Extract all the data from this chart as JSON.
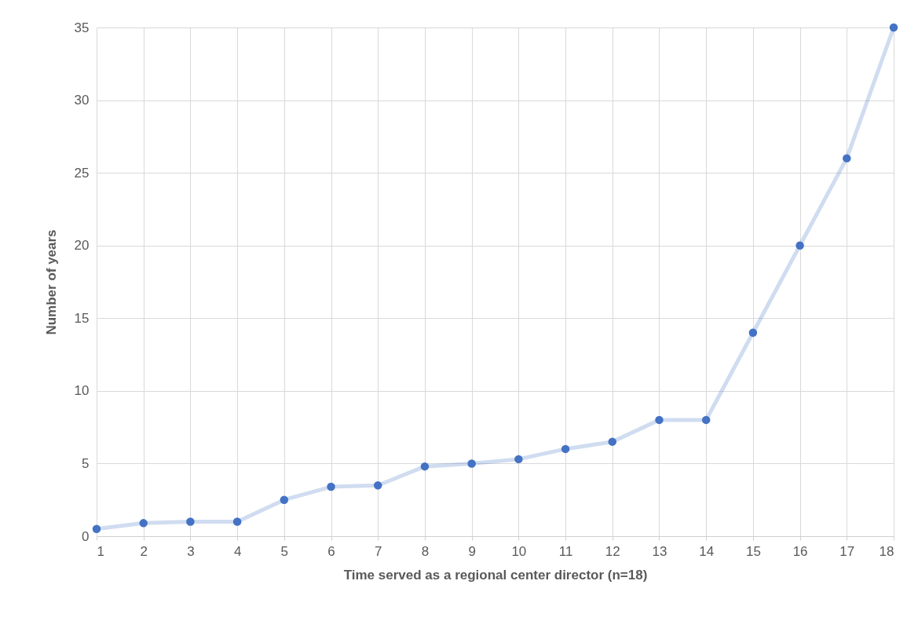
{
  "chart_data": {
    "type": "line",
    "xlabel": "Time served as a regional center director (n=18)",
    "ylabel": "Number of years",
    "x": [
      1,
      2,
      3,
      4,
      5,
      6,
      7,
      8,
      9,
      10,
      11,
      12,
      13,
      14,
      15,
      16,
      17,
      18
    ],
    "series": [
      {
        "color": "#4472c4",
        "values": [
          0.5,
          0.9,
          1,
          1,
          2.5,
          3.4,
          3.5,
          4.8,
          5,
          5.3,
          6,
          6.5,
          8,
          8,
          14,
          20,
          26,
          35
        ]
      }
    ],
    "xlim": [
      1,
      18
    ],
    "xticks": [
      1,
      2,
      3,
      4,
      5,
      6,
      7,
      8,
      9,
      10,
      11,
      12,
      13,
      14,
      15,
      16,
      17,
      18
    ],
    "ylim": [
      0,
      35
    ],
    "yticks": [
      0,
      5,
      10,
      15,
      20,
      25,
      30,
      35
    ],
    "grid": true,
    "marker": "circle"
  }
}
